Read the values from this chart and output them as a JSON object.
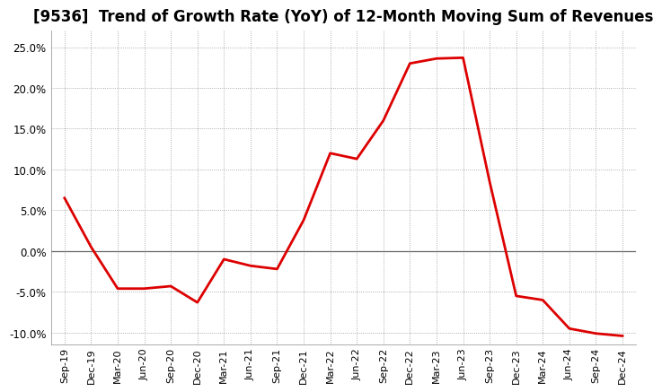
{
  "title": "[9536]  Trend of Growth Rate (YoY) of 12-Month Moving Sum of Revenues",
  "line_color": "#dd0000",
  "background_color": "#ffffff",
  "plot_bg_color": "#ffffff",
  "grid_color": "#999999",
  "ylim": [
    -0.115,
    0.27
  ],
  "yticks": [
    -0.1,
    -0.05,
    0.0,
    0.05,
    0.1,
    0.15,
    0.2,
    0.25
  ],
  "x_labels": [
    "Sep-19",
    "Dec-19",
    "Mar-20",
    "Jun-20",
    "Sep-20",
    "Dec-20",
    "Mar-21",
    "Jun-21",
    "Sep-21",
    "Dec-21",
    "Mar-22",
    "Jun-22",
    "Sep-22",
    "Dec-22",
    "Mar-23",
    "Jun-23",
    "Sep-23",
    "Dec-23",
    "Mar-24",
    "Jun-24",
    "Sep-24",
    "Dec-24"
  ],
  "values": [
    0.065,
    0.005,
    -0.046,
    -0.046,
    -0.043,
    -0.063,
    -0.01,
    -0.018,
    -0.022,
    0.038,
    0.12,
    0.113,
    0.16,
    0.23,
    0.236,
    0.237,
    0.085,
    -0.055,
    -0.06,
    -0.095,
    -0.101,
    -0.104
  ],
  "line_width": 2.0,
  "title_fontsize": 12,
  "tick_fontsize": 8,
  "ytick_fontsize": 8.5
}
